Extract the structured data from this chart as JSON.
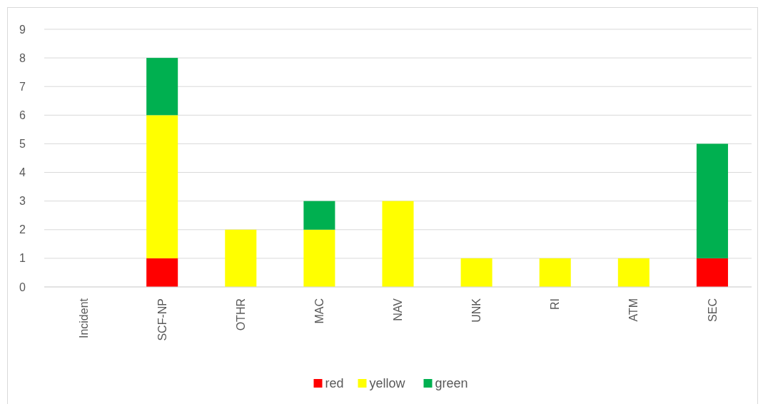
{
  "chart_data": {
    "type": "bar",
    "stacked": true,
    "categories": [
      "Incident",
      "SCF-NP",
      "OTHR",
      "MAC",
      "NAV",
      "UNK",
      "RI",
      "ATM",
      "SEC"
    ],
    "series": [
      {
        "name": "red",
        "color": "#ff0000",
        "values": [
          0,
          1,
          0,
          0,
          0,
          0,
          0,
          0,
          1
        ]
      },
      {
        "name": "yellow",
        "color": "#ffff00",
        "values": [
          0,
          5,
          2,
          2,
          3,
          1,
          1,
          1,
          0
        ]
      },
      {
        "name": "green",
        "color": "#00b050",
        "values": [
          0,
          2,
          0,
          1,
          0,
          0,
          0,
          0,
          4
        ]
      }
    ],
    "ylim": [
      0,
      9
    ],
    "yticks": [
      0,
      1,
      2,
      3,
      4,
      5,
      6,
      7,
      8,
      9
    ],
    "grid": "y",
    "legend": "bottom"
  }
}
